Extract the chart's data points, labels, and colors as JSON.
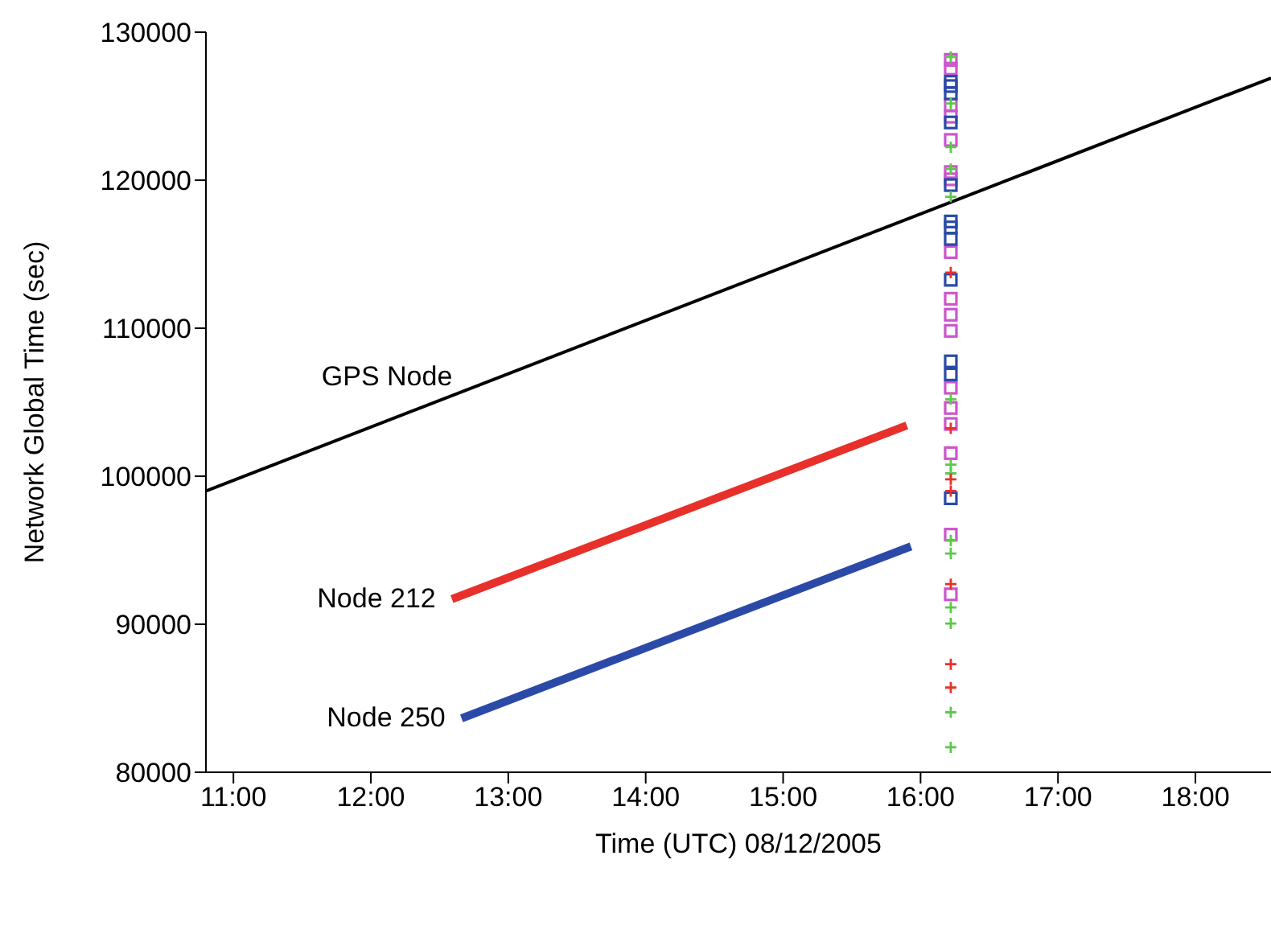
{
  "chart_data": {
    "type": "line",
    "xlabel": "Time (UTC) 08/12/2005",
    "ylabel": "Network Global Time (sec)",
    "xlim": [
      10.8,
      18.55
    ],
    "xticks": [
      {
        "value": 11,
        "label": "11:00"
      },
      {
        "value": 12,
        "label": "12:00"
      },
      {
        "value": 13,
        "label": "13:00"
      },
      {
        "value": 14,
        "label": "14:00"
      },
      {
        "value": 15,
        "label": "15:00"
      },
      {
        "value": 16,
        "label": "16:00"
      },
      {
        "value": 17,
        "label": "17:00"
      },
      {
        "value": 18,
        "label": "18:00"
      }
    ],
    "ylim": [
      80000,
      130000
    ],
    "yticks": [
      80000,
      90000,
      100000,
      110000,
      120000,
      130000
    ],
    "grid": false,
    "legend": false,
    "marker": "none",
    "line_style": "solid",
    "series": [
      {
        "name": "GPS Node",
        "color": "#000000",
        "x": [
          10.8,
          18.55
        ],
        "values": [
          99000,
          126900
        ]
      },
      {
        "name": "Node 212",
        "color": "#e8302a",
        "x": [
          12.59,
          15.9
        ],
        "values": [
          91700,
          103430
        ]
      },
      {
        "name": "Node 250",
        "color": "#2b4aa8",
        "x": [
          12.66,
          15.93
        ],
        "values": [
          83640,
          95260
        ]
      },
      {
        "type": "scatter",
        "marker": "square",
        "color": "#cc55cc",
        "x": [
          16.22,
          16.22,
          16.22,
          16.22,
          16.22,
          16.22,
          16.22,
          16.22,
          16.22,
          16.22,
          16.22,
          16.22,
          16.22,
          16.22,
          16.22,
          16.22,
          16.22
        ],
        "values": [
          128130,
          127540,
          125080,
          124290,
          122720,
          120550,
          120060,
          115140,
          111990,
          110910,
          109820,
          105980,
          104610,
          103530,
          101560,
          96050,
          92020
        ]
      },
      {
        "type": "scatter",
        "marker": "square",
        "color": "#2b4aa8",
        "x": [
          16.22,
          16.22,
          16.22,
          16.22,
          16.22,
          16.22,
          16.22,
          16.22,
          16.22,
          16.22,
          16.22,
          16.22
        ],
        "values": [
          126650,
          126360,
          125870,
          123900,
          119670,
          117210,
          116810,
          116030,
          113270,
          107760,
          106880,
          98510
        ]
      },
      {
        "type": "scatter",
        "marker": "cross",
        "color": "#5cc84a",
        "x": [
          16.22,
          16.22,
          16.22,
          16.22,
          16.22,
          16.22,
          16.22,
          16.22,
          16.22,
          16.22,
          16.22,
          16.22,
          16.22,
          16.22
        ],
        "values": [
          128330,
          125180,
          122230,
          120750,
          118880,
          105200,
          100780,
          100190,
          95660,
          94780,
          91130,
          90050,
          84050,
          81690
        ]
      },
      {
        "type": "scatter",
        "marker": "cross",
        "color": "#e8302a",
        "x": [
          16.22,
          16.22,
          16.22,
          16.22,
          16.22,
          16.22,
          16.22
        ],
        "values": [
          113760,
          103240,
          99790,
          99000,
          92710,
          87300,
          85720
        ]
      }
    ]
  }
}
